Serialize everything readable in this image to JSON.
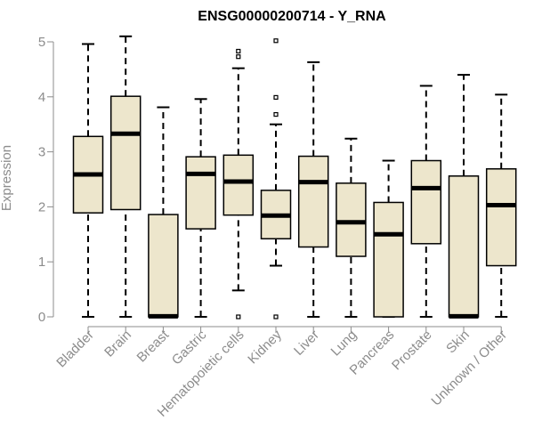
{
  "chart_data": {
    "type": "box",
    "title": "ENSG00000200714 - Y_RNA",
    "xlabel": "",
    "ylabel": "Expression",
    "ylim": [
      0,
      5
    ],
    "yticks": [
      0,
      1,
      2,
      3,
      4,
      5
    ],
    "grid": false,
    "legend": "none",
    "colors": {
      "box_fill": "#ede6cc",
      "box_stroke": "#000000",
      "median": "#000000",
      "axis": "#8c8c8c",
      "tick_label": "#8c8c8c",
      "title": "#000000"
    },
    "categories": [
      "Bladder",
      "Brain",
      "Breast",
      "Gastric",
      "Hematopoietic cells",
      "Kidney",
      "Liver",
      "Lung",
      "Pancreas",
      "Prostate",
      "Skin",
      "Unknown / Other"
    ],
    "boxes": [
      {
        "category": "Bladder",
        "min": 0,
        "q1": 1.89,
        "median": 2.59,
        "q3": 3.28,
        "max": 4.96,
        "outliers": []
      },
      {
        "category": "Brain",
        "min": 0,
        "q1": 1.95,
        "median": 3.33,
        "q3": 4.01,
        "max": 5.1,
        "outliers": []
      },
      {
        "category": "Breast",
        "min": 0,
        "q1": 0,
        "median": 0.01,
        "q3": 1.86,
        "max": 3.81,
        "outliers": []
      },
      {
        "category": "Gastric",
        "min": 0,
        "q1": 1.6,
        "median": 2.6,
        "q3": 2.91,
        "max": 3.96,
        "outliers": []
      },
      {
        "category": "Hematopoietic cells",
        "min": 0.48,
        "q1": 1.85,
        "median": 2.46,
        "q3": 2.94,
        "max": 4.52,
        "outliers": [
          0.0,
          4.73,
          4.83
        ]
      },
      {
        "category": "Kidney",
        "min": 0.93,
        "q1": 1.42,
        "median": 1.84,
        "q3": 2.3,
        "max": 3.5,
        "outliers": [
          0.0,
          3.68,
          3.99,
          5.02
        ]
      },
      {
        "category": "Liver",
        "min": 0,
        "q1": 1.27,
        "median": 2.45,
        "q3": 2.92,
        "max": 4.63,
        "outliers": []
      },
      {
        "category": "Lung",
        "min": 0,
        "q1": 1.1,
        "median": 1.72,
        "q3": 2.43,
        "max": 3.24,
        "outliers": []
      },
      {
        "category": "Pancreas",
        "min": 0,
        "q1": 0,
        "median": 1.5,
        "q3": 2.08,
        "max": 2.84,
        "outliers": []
      },
      {
        "category": "Prostate",
        "min": 0,
        "q1": 1.33,
        "median": 2.34,
        "q3": 2.84,
        "max": 4.2,
        "outliers": []
      },
      {
        "category": "Skin",
        "min": 0,
        "q1": 0,
        "median": 0.01,
        "q3": 2.56,
        "max": 4.4,
        "outliers": []
      },
      {
        "category": "Unknown / Other",
        "min": 0,
        "q1": 0.93,
        "median": 2.03,
        "q3": 2.69,
        "max": 4.04,
        "outliers": []
      }
    ]
  }
}
